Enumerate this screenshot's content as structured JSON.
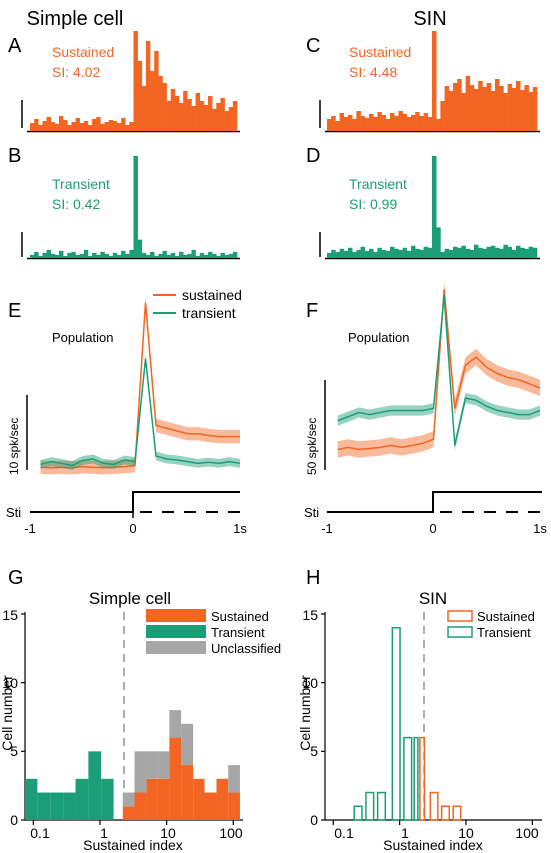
{
  "colors": {
    "sustained": "#F26522",
    "transient": "#1B9E77",
    "unclassified": "#A6A6A6",
    "axis": "#000000"
  },
  "headers": {
    "left": "Simple cell",
    "right": "SIN"
  },
  "panel_letters": [
    "A",
    "B",
    "C",
    "D",
    "E",
    "F",
    "G",
    "H"
  ],
  "psth_labels": {
    "A": {
      "type": "Sustained",
      "si": "SI: 4.02"
    },
    "B": {
      "type": "Transient",
      "si": "SI: 0.42"
    },
    "C": {
      "type": "Sustained",
      "si": "SI: 4.48"
    },
    "D": {
      "type": "Transient",
      "si": "SI: 0.99"
    }
  },
  "population_label": "Population",
  "pop_legend": {
    "sustained": "sustained",
    "transient": "transient"
  },
  "scale_labels": {
    "E": "10 spk/sec",
    "F": "50 spk/sec"
  },
  "stim_label": "Sti",
  "time_ticks": [
    "-1",
    "0",
    "1s"
  ],
  "hist_titles": {
    "G": "Simple cell",
    "H": "SIN"
  },
  "hist_xlabel": "Sustained index",
  "hist_ylabel": "Cell number",
  "hist_x_ticks": [
    "0.1",
    "1",
    "10",
    "100"
  ],
  "hist_y_ticks": [
    "0",
    "5",
    "10",
    "15"
  ],
  "hist_legend_G": [
    "Sustained",
    "Transient",
    "Unclassified"
  ],
  "hist_legend_H": [
    "Sustained",
    "Transient"
  ],
  "chart_data": [
    {
      "panel": "A",
      "type": "bar",
      "xlim": [
        -1,
        1
      ],
      "x": [
        -1.0,
        -0.96,
        -0.92,
        -0.88,
        -0.84,
        -0.8,
        -0.76,
        -0.72,
        -0.68,
        -0.64,
        -0.6,
        -0.56,
        -0.52,
        -0.48,
        -0.44,
        -0.4,
        -0.36,
        -0.32,
        -0.28,
        -0.24,
        -0.2,
        -0.16,
        -0.12,
        -0.08,
        -0.04,
        0.0,
        0.04,
        0.08,
        0.12,
        0.16,
        0.2,
        0.24,
        0.28,
        0.32,
        0.36,
        0.4,
        0.44,
        0.48,
        0.52,
        0.56,
        0.6,
        0.64,
        0.68,
        0.72,
        0.76,
        0.8,
        0.84,
        0.88,
        0.92,
        0.96
      ],
      "values": [
        8,
        12,
        6,
        10,
        14,
        9,
        7,
        15,
        11,
        6,
        9,
        13,
        8,
        10,
        6,
        12,
        14,
        7,
        9,
        11,
        10,
        8,
        13,
        6,
        9,
        100,
        70,
        45,
        90,
        60,
        80,
        55,
        48,
        30,
        42,
        35,
        28,
        40,
        32,
        25,
        38,
        30,
        26,
        35,
        22,
        28,
        33,
        20,
        24,
        30
      ]
    },
    {
      "panel": "B",
      "type": "bar",
      "xlim": [
        -1,
        1
      ],
      "x": [
        -1.0,
        -0.96,
        -0.92,
        -0.88,
        -0.84,
        -0.8,
        -0.76,
        -0.72,
        -0.68,
        -0.64,
        -0.6,
        -0.56,
        -0.52,
        -0.48,
        -0.44,
        -0.4,
        -0.36,
        -0.32,
        -0.28,
        -0.24,
        -0.2,
        -0.16,
        -0.12,
        -0.08,
        -0.04,
        0.0,
        0.04,
        0.08,
        0.12,
        0.16,
        0.2,
        0.24,
        0.28,
        0.32,
        0.36,
        0.4,
        0.44,
        0.48,
        0.52,
        0.56,
        0.6,
        0.64,
        0.68,
        0.72,
        0.76,
        0.8,
        0.84,
        0.88,
        0.92,
        0.96
      ],
      "values": [
        3,
        6,
        2,
        5,
        8,
        4,
        3,
        7,
        2,
        5,
        6,
        3,
        4,
        8,
        2,
        5,
        3,
        6,
        4,
        2,
        5,
        3,
        7,
        4,
        8,
        100,
        18,
        5,
        3,
        6,
        2,
        4,
        7,
        3,
        5,
        2,
        6,
        3,
        4,
        8,
        2,
        5,
        3,
        6,
        4,
        2,
        5,
        3,
        4,
        6
      ]
    },
    {
      "panel": "C",
      "type": "bar",
      "xlim": [
        -1,
        1
      ],
      "x": [
        -1.0,
        -0.96,
        -0.92,
        -0.88,
        -0.84,
        -0.8,
        -0.76,
        -0.72,
        -0.68,
        -0.64,
        -0.6,
        -0.56,
        -0.52,
        -0.48,
        -0.44,
        -0.4,
        -0.36,
        -0.32,
        -0.28,
        -0.24,
        -0.2,
        -0.16,
        -0.12,
        -0.08,
        -0.04,
        0.0,
        0.04,
        0.08,
        0.12,
        0.16,
        0.2,
        0.24,
        0.28,
        0.32,
        0.36,
        0.4,
        0.44,
        0.48,
        0.52,
        0.56,
        0.6,
        0.64,
        0.68,
        0.72,
        0.76,
        0.8,
        0.84,
        0.88,
        0.92,
        0.96
      ],
      "values": [
        12,
        15,
        10,
        18,
        14,
        16,
        12,
        20,
        15,
        13,
        17,
        14,
        19,
        16,
        12,
        18,
        15,
        20,
        17,
        14,
        16,
        19,
        15,
        18,
        14,
        100,
        12,
        30,
        45,
        40,
        48,
        52,
        38,
        55,
        46,
        42,
        50,
        44,
        48,
        40,
        52,
        45,
        38,
        47,
        43,
        50,
        41,
        46,
        39,
        44
      ]
    },
    {
      "panel": "D",
      "type": "bar",
      "xlim": [
        -1,
        1
      ],
      "x": [
        -1.0,
        -0.96,
        -0.92,
        -0.88,
        -0.84,
        -0.8,
        -0.76,
        -0.72,
        -0.68,
        -0.64,
        -0.6,
        -0.56,
        -0.52,
        -0.48,
        -0.44,
        -0.4,
        -0.36,
        -0.32,
        -0.28,
        -0.24,
        -0.2,
        -0.16,
        -0.12,
        -0.08,
        -0.04,
        0.0,
        0.04,
        0.08,
        0.12,
        0.16,
        0.2,
        0.24,
        0.28,
        0.32,
        0.36,
        0.4,
        0.44,
        0.48,
        0.52,
        0.56,
        0.6,
        0.64,
        0.68,
        0.72,
        0.76,
        0.8,
        0.84,
        0.88,
        0.92,
        0.96
      ],
      "values": [
        5,
        8,
        6,
        9,
        7,
        10,
        6,
        8,
        11,
        7,
        9,
        6,
        10,
        8,
        7,
        11,
        9,
        8,
        10,
        7,
        12,
        9,
        8,
        11,
        10,
        100,
        30,
        6,
        9,
        8,
        11,
        10,
        12,
        9,
        8,
        13,
        10,
        9,
        11,
        12,
        10,
        9,
        13,
        11,
        8,
        12,
        10,
        9,
        11,
        10
      ]
    },
    {
      "panel": "E",
      "type": "line",
      "xlim": [
        -1,
        1
      ],
      "ylim": [
        0,
        35
      ],
      "series": [
        {
          "name": "sustained",
          "x": [
            -0.9,
            -0.8,
            -0.7,
            -0.6,
            -0.5,
            -0.4,
            -0.3,
            -0.2,
            -0.1,
            0,
            0.1,
            0.2,
            0.3,
            0.4,
            0.5,
            0.6,
            0.7,
            0.8,
            0.9,
            1.0
          ],
          "values": [
            0.5,
            0.4,
            0.5,
            0.4,
            0.6,
            0.5,
            0.4,
            0.5,
            0.6,
            0.8,
            30,
            8,
            7.5,
            7,
            6.5,
            6.5,
            6.2,
            6,
            6,
            6
          ],
          "err": 1.2
        },
        {
          "name": "transient",
          "x": [
            -0.9,
            -0.8,
            -0.7,
            -0.6,
            -0.5,
            -0.4,
            -0.3,
            -0.2,
            -0.1,
            0,
            0.1,
            0.2,
            0.3,
            0.4,
            0.5,
            0.6,
            0.7,
            0.8,
            0.9,
            1.0
          ],
          "values": [
            1.0,
            1.5,
            1.2,
            0.8,
            1.7,
            2.0,
            1.2,
            1.0,
            1.8,
            1.5,
            20,
            2.5,
            2.0,
            1.8,
            1.5,
            1.2,
            1.4,
            1.2,
            1.5,
            1.2
          ],
          "err": 0.8
        }
      ]
    },
    {
      "panel": "F",
      "type": "line",
      "xlim": [
        -1,
        1
      ],
      "ylim": [
        0,
        95
      ],
      "series": [
        {
          "name": "sustained",
          "x": [
            -0.9,
            -0.8,
            -0.7,
            -0.6,
            -0.5,
            -0.4,
            -0.3,
            -0.2,
            -0.1,
            0,
            0.1,
            0.2,
            0.3,
            0.4,
            0.5,
            0.6,
            0.7,
            0.8,
            0.9,
            1.0
          ],
          "values": [
            10,
            11,
            10,
            10.5,
            11,
            12,
            11,
            12,
            13,
            15,
            88,
            30,
            51,
            55,
            50,
            47,
            45,
            44,
            42,
            40
          ],
          "err": 4
        },
        {
          "name": "transient",
          "x": [
            -0.9,
            -0.8,
            -0.7,
            -0.6,
            -0.5,
            -0.4,
            -0.3,
            -0.2,
            -0.1,
            0,
            0.1,
            0.2,
            0.3,
            0.4,
            0.5,
            0.6,
            0.7,
            0.8,
            0.9,
            1.0
          ],
          "values": [
            24,
            26,
            28,
            27,
            28,
            29,
            29,
            29,
            29,
            30,
            85,
            12,
            35,
            34,
            31,
            29,
            28,
            27,
            27,
            29
          ],
          "err": 2.5
        }
      ]
    },
    {
      "panel": "G",
      "type": "bar",
      "title": "Simple cell",
      "xlabel": "Sustained index",
      "ylabel": "Cell number",
      "xscale": "log",
      "xlim": [
        0.075,
        140
      ],
      "ylim": [
        0,
        15
      ],
      "series": [
        {
          "name": "Transient",
          "bins": [
            [
              0.075,
              0.115
            ],
            [
              0.115,
              0.18
            ],
            [
              0.18,
              0.28
            ],
            [
              0.28,
              0.43
            ],
            [
              0.43,
              0.67
            ],
            [
              0.67,
              1.04
            ],
            [
              1.04,
              1.6
            ]
          ],
          "values": [
            3,
            2,
            2,
            2,
            3,
            5,
            3
          ]
        },
        {
          "name": "Sustained",
          "bins": [
            [
              2.2,
              3.3
            ],
            [
              3.3,
              5.0
            ],
            [
              5.0,
              7.4
            ],
            [
              7.4,
              11
            ],
            [
              11,
              16.5
            ],
            [
              16.5,
              25
            ],
            [
              25,
              37
            ],
            [
              37,
              56
            ],
            [
              56,
              84
            ],
            [
              84,
              126
            ]
          ],
          "values": [
            1,
            2,
            3,
            3,
            6,
            4,
            3,
            2,
            3,
            2
          ]
        },
        {
          "name": "Unclassified",
          "bins": [
            [
              2.2,
              3.3
            ],
            [
              3.3,
              5.0
            ],
            [
              5.0,
              7.4
            ],
            [
              7.4,
              11
            ],
            [
              11,
              16.5
            ],
            [
              16.5,
              25
            ],
            [
              25,
              37
            ],
            [
              37,
              56
            ],
            [
              56,
              84
            ],
            [
              84,
              126
            ]
          ],
          "values": [
            1,
            3,
            2,
            2,
            2,
            3,
            0,
            0,
            0,
            2
          ]
        }
      ]
    },
    {
      "panel": "H",
      "type": "bar",
      "title": "SIN",
      "xlabel": "Sustained index",
      "ylabel": "Cell number",
      "xscale": "log",
      "xlim": [
        0.075,
        140
      ],
      "ylim": [
        0,
        15
      ],
      "series": [
        {
          "name": "Transient",
          "bins": [
            [
              0.2,
              0.28
            ],
            [
              0.3,
              0.42
            ],
            [
              0.45,
              0.63
            ],
            [
              0.75,
              1.05
            ],
            [
              1.12,
              1.57
            ],
            [
              1.6,
              1.95
            ]
          ],
          "values": [
            1,
            2,
            2,
            14,
            6,
            6
          ]
        },
        {
          "name": "Sustained",
          "bins": [
            [
              1.95,
              2.45
            ],
            [
              2.8,
              3.9
            ],
            [
              4.15,
              5.8
            ],
            [
              6.2,
              8.6
            ]
          ],
          "values": [
            6,
            2,
            1,
            1
          ]
        }
      ]
    }
  ]
}
